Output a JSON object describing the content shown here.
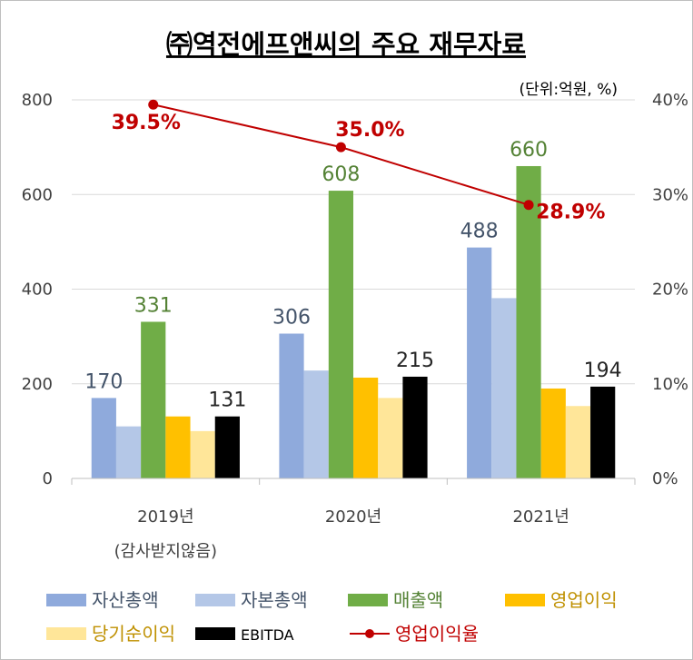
{
  "chart_data": {
    "type": "bar",
    "title": "㈜역전에프앤씨의 주요 재무자료",
    "unit_note": "(단위:억원, %)",
    "categories": [
      "2019년",
      "2020년",
      "2021년"
    ],
    "category_notes": [
      "(감사받지않음)",
      "",
      ""
    ],
    "ylim": [
      0,
      800
    ],
    "yticks": [
      "0",
      "200",
      "400",
      "600",
      "800"
    ],
    "y2lim": [
      0,
      40
    ],
    "y2ticks": [
      "0%",
      "10%",
      "20%",
      "30%",
      "40%"
    ],
    "grid": true,
    "legend_position": "bottom",
    "series": [
      {
        "name": "자산총액",
        "values": [
          170,
          306,
          488
        ],
        "color": "#8faadc",
        "labels": [
          "170",
          "306",
          "488"
        ],
        "label_color": "#44546a"
      },
      {
        "name": "자본총액",
        "values": [
          110,
          228,
          381
        ],
        "color": "#b4c7e7",
        "labels": [
          "",
          "",
          ""
        ],
        "label_color": "#44546a"
      },
      {
        "name": "매출액",
        "values": [
          331,
          608,
          660
        ],
        "color": "#70ad47",
        "labels": [
          "331",
          "608",
          "660"
        ],
        "label_color": "#548235"
      },
      {
        "name": "영업이익",
        "values": [
          131,
          213,
          190
        ],
        "color": "#ffc000",
        "labels": [
          "",
          "",
          ""
        ],
        "label_color": "#bf9000"
      },
      {
        "name": "당기순이익",
        "values": [
          100,
          170,
          153
        ],
        "color": "#ffe699",
        "labels": [
          "",
          "",
          ""
        ],
        "label_color": "#bf9000"
      },
      {
        "name": "EBITDA",
        "values": [
          131,
          215,
          194
        ],
        "color": "#000000",
        "labels": [
          "131",
          "215",
          "194"
        ],
        "label_color": "#262626"
      }
    ],
    "line_series": {
      "name": "영업이익율",
      "values": [
        39.5,
        35.0,
        28.9
      ],
      "labels": [
        "39.5%",
        "35.0%",
        "28.9%"
      ],
      "color": "#c00000",
      "axis": "secondary"
    }
  }
}
